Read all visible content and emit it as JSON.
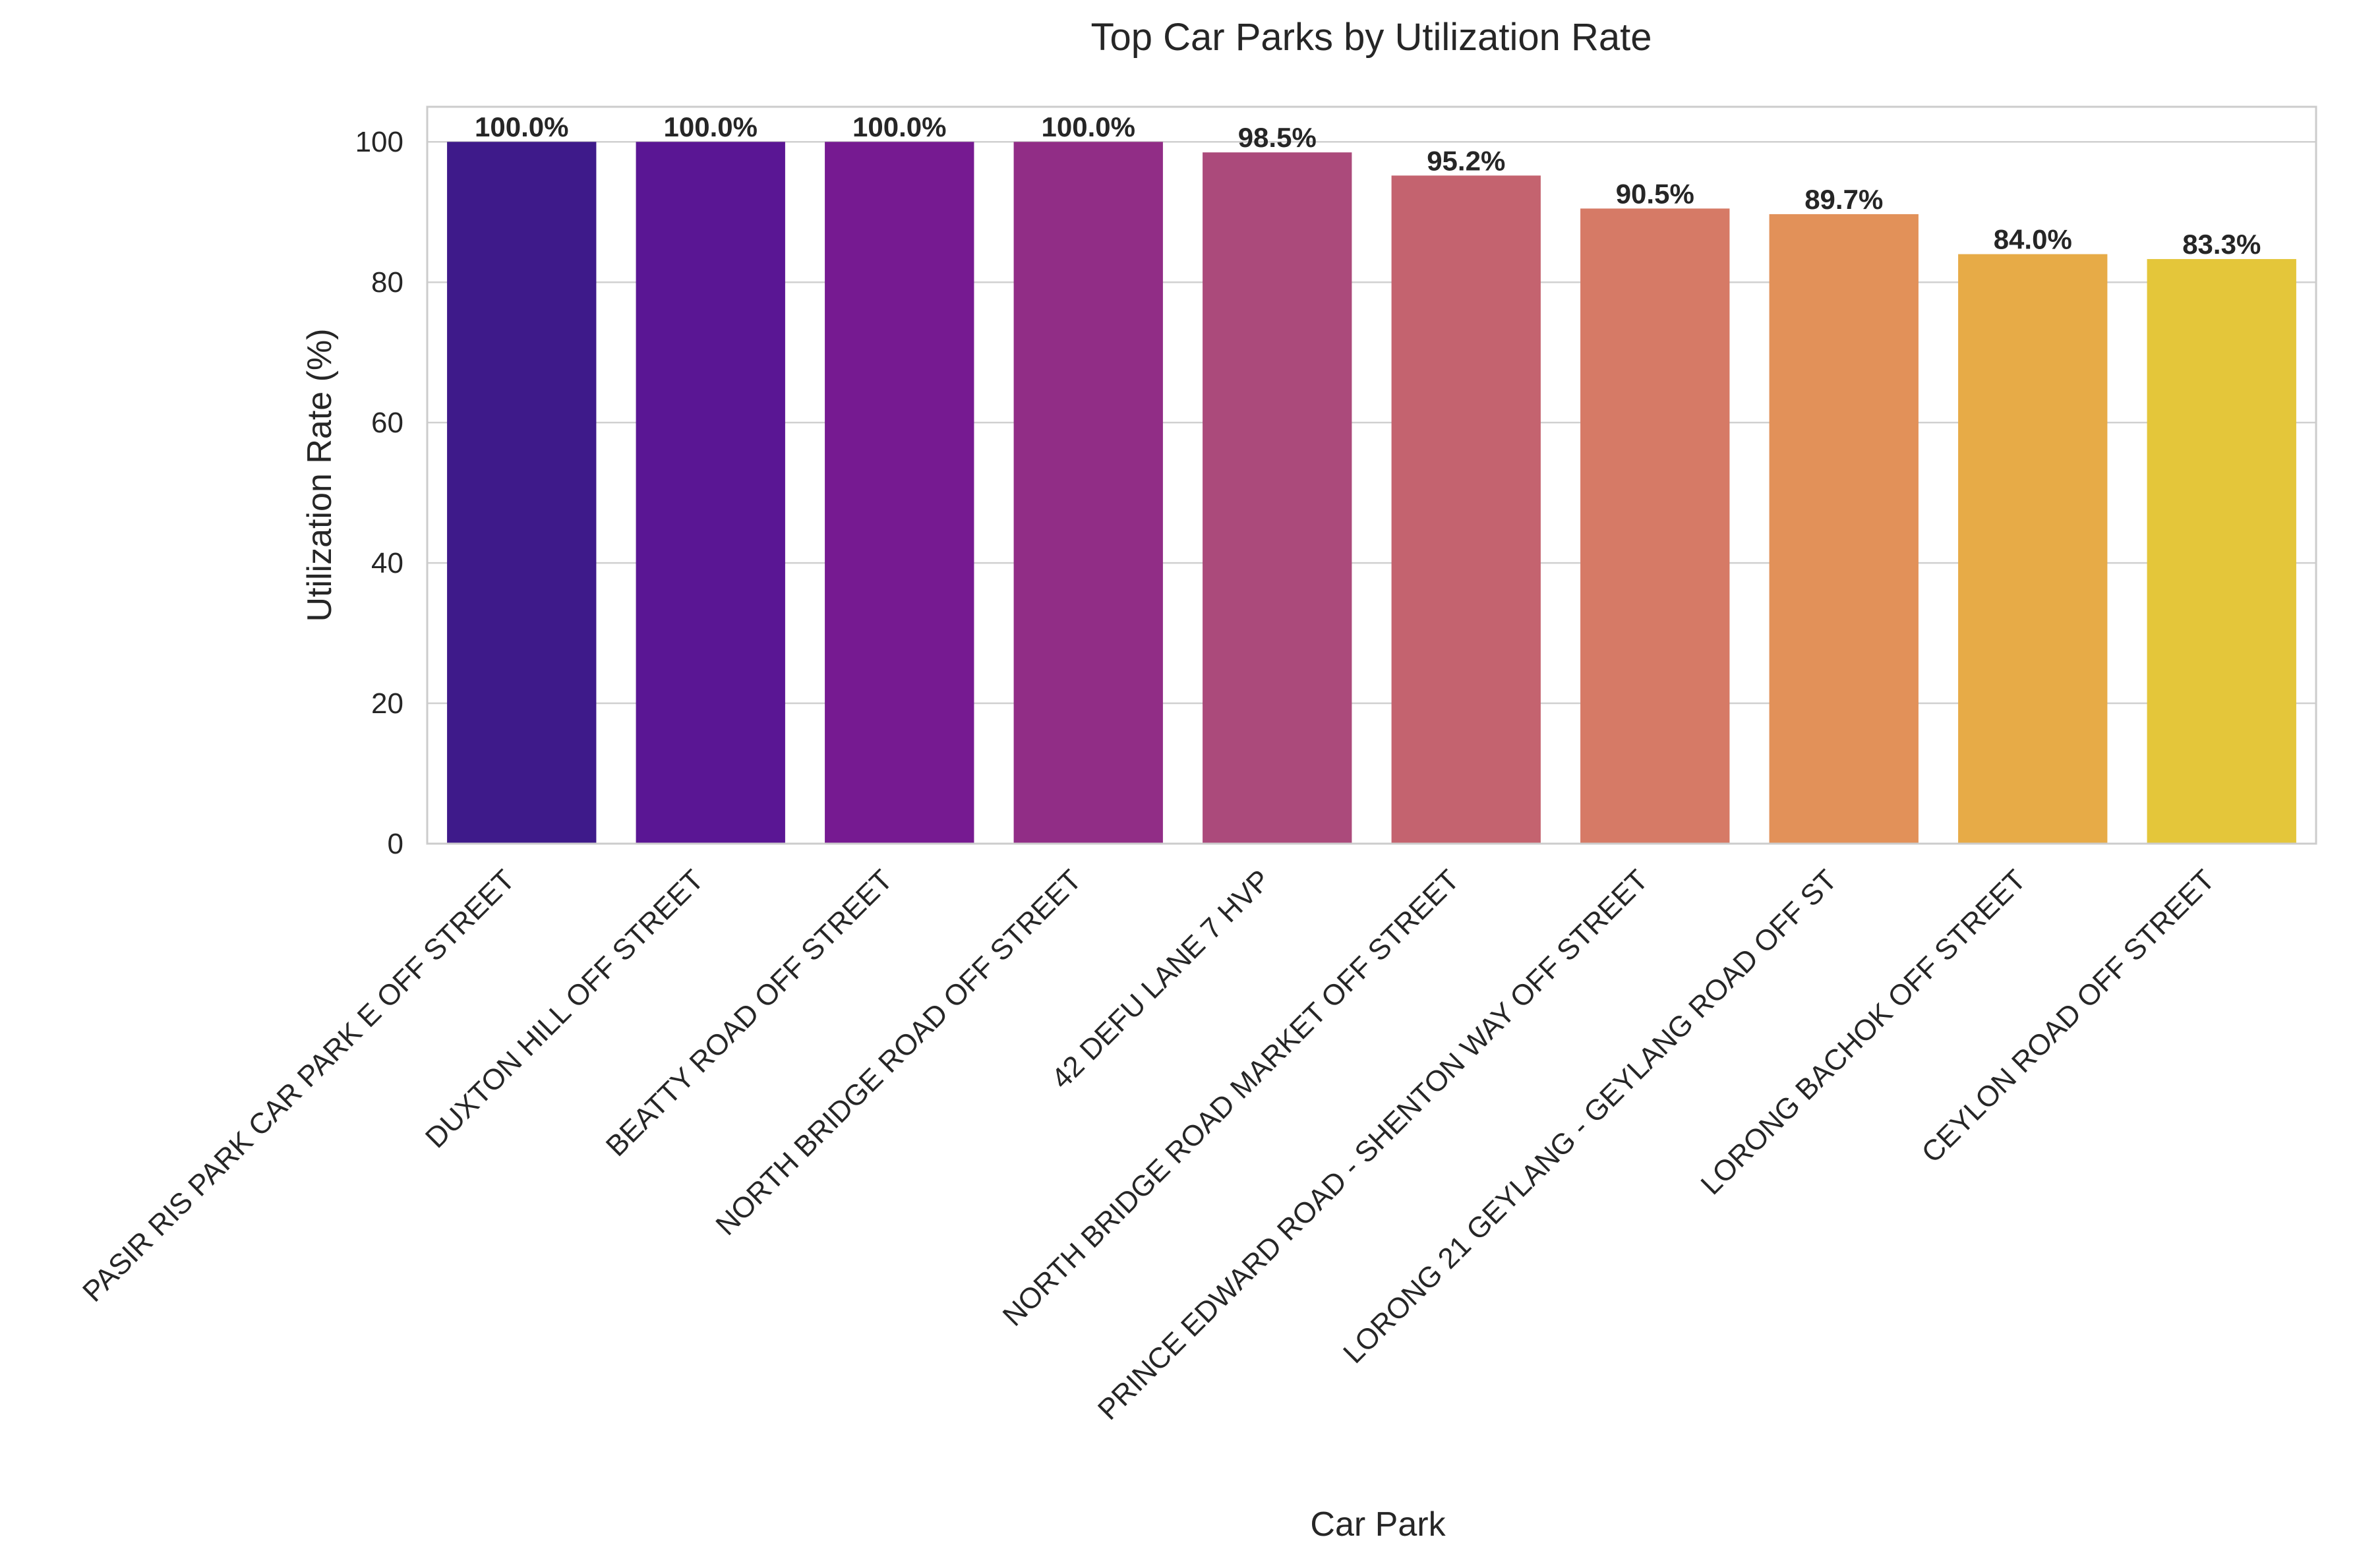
{
  "chart_data": {
    "type": "bar",
    "title": "Top Car Parks by Utilization Rate",
    "xlabel": "Car Park",
    "ylabel": "Utilization Rate (%)",
    "ylim": [
      0,
      105
    ],
    "yticks": [
      0,
      20,
      40,
      60,
      80,
      100
    ],
    "grid": "horizontal",
    "categories": [
      "PASIR RIS PARK CAR PARK E OFF STREET",
      "DUXTON HILL OFF STREET",
      "BEATTY ROAD OFF STREET",
      "NORTH BRIDGE ROAD OFF STREET",
      "42 DEFU LANE 7 HVP",
      "NORTH BRIDGE ROAD MARKET OFF STREET",
      "PRINCE EDWARD ROAD - SHENTON WAY OFF STREET",
      "LORONG 21 GEYLANG - GEYLANG ROAD OFF ST",
      "LORONG BACHOK OFF STREET",
      "CEYLON ROAD OFF STREET"
    ],
    "values": [
      100.0,
      100.0,
      100.0,
      100.0,
      98.5,
      95.2,
      90.5,
      89.7,
      84.0,
      83.3
    ],
    "value_labels": [
      "100.0%",
      "100.0%",
      "100.0%",
      "100.0%",
      "98.5%",
      "95.2%",
      "90.5%",
      "89.7%",
      "84.0%",
      "83.3%"
    ],
    "colors": [
      "#3e1a8a",
      "#5a1694",
      "#761a91",
      "#912d86",
      "#ab4a7b",
      "#c4636f",
      "#d67a66",
      "#e29159",
      "#e7ab47",
      "#e4c63a"
    ]
  }
}
